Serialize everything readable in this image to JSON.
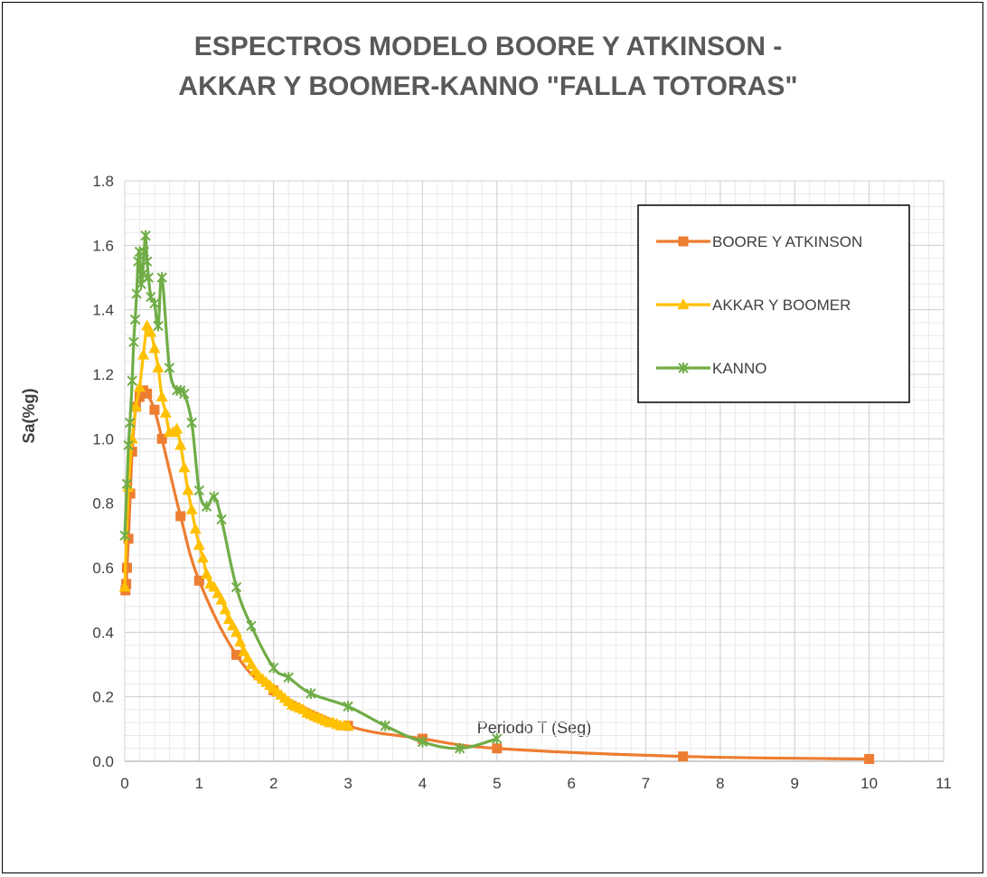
{
  "chart_data": {
    "type": "line",
    "title": "ESPECTROS MODELO BOORE Y ATKINSON - AKKAR Y BOOMER-KANNO \"FALLA TOTORAS\"",
    "xlabel": "Periodo T (Seg)",
    "ylabel": "Sa(%g)",
    "xlim": [
      0,
      11
    ],
    "ylim": [
      0,
      1.8
    ],
    "xticks": [
      "0",
      "1",
      "2",
      "3",
      "4",
      "5",
      "6",
      "7",
      "8",
      "9",
      "10",
      "11"
    ],
    "yticks": [
      "0.0",
      "0.2",
      "0.4",
      "0.6",
      "0.8",
      "1.0",
      "1.2",
      "1.4",
      "1.6",
      "1.8"
    ],
    "grid": true,
    "legend_position": "top-right",
    "series": [
      {
        "name": "BOORE Y ATKINSON",
        "color": "#ED7D31",
        "marker": "square",
        "x": [
          0.01,
          0.02,
          0.03,
          0.05,
          0.075,
          0.1,
          0.15,
          0.2,
          0.25,
          0.3,
          0.4,
          0.5,
          0.75,
          1.0,
          1.5,
          2.0,
          3.0,
          4.0,
          5.0,
          7.5,
          10.0
        ],
        "y": [
          0.53,
          0.55,
          0.6,
          0.69,
          0.83,
          0.96,
          1.1,
          1.13,
          1.15,
          1.14,
          1.09,
          1.0,
          0.76,
          0.56,
          0.33,
          0.22,
          0.11,
          0.07,
          0.04,
          0.015,
          0.007
        ]
      },
      {
        "name": "AKKAR Y BOOMER",
        "color": "#FFC000",
        "marker": "triangle",
        "x": [
          0.0,
          0.05,
          0.1,
          0.15,
          0.2,
          0.25,
          0.3,
          0.35,
          0.4,
          0.45,
          0.5,
          0.55,
          0.6,
          0.65,
          0.7,
          0.75,
          0.8,
          0.85,
          0.9,
          0.95,
          1.0,
          1.05,
          1.1,
          1.15,
          1.2,
          1.25,
          1.3,
          1.35,
          1.4,
          1.45,
          1.5,
          1.55,
          1.6,
          1.65,
          1.7,
          1.75,
          1.8,
          1.85,
          1.9,
          1.95,
          2.0,
          2.05,
          2.1,
          2.15,
          2.2,
          2.25,
          2.3,
          2.35,
          2.4,
          2.45,
          2.5,
          2.55,
          2.6,
          2.65,
          2.7,
          2.75,
          2.8,
          2.85,
          2.9,
          2.95,
          3.0
        ],
        "y": [
          0.54,
          0.85,
          1.0,
          1.1,
          1.16,
          1.26,
          1.35,
          1.33,
          1.28,
          1.22,
          1.13,
          1.08,
          1.02,
          1.02,
          1.03,
          0.98,
          0.91,
          0.84,
          0.78,
          0.72,
          0.67,
          0.63,
          0.58,
          0.55,
          0.54,
          0.52,
          0.5,
          0.47,
          0.44,
          0.42,
          0.4,
          0.37,
          0.34,
          0.32,
          0.3,
          0.28,
          0.265,
          0.255,
          0.245,
          0.235,
          0.225,
          0.215,
          0.205,
          0.195,
          0.185,
          0.175,
          0.17,
          0.165,
          0.16,
          0.15,
          0.145,
          0.14,
          0.135,
          0.13,
          0.125,
          0.12,
          0.12,
          0.115,
          0.11,
          0.11,
          0.11
        ]
      },
      {
        "name": "KANNO",
        "color": "#70AD47",
        "marker": "star",
        "x": [
          0.0,
          0.03,
          0.05,
          0.07,
          0.1,
          0.12,
          0.14,
          0.16,
          0.18,
          0.2,
          0.22,
          0.24,
          0.26,
          0.28,
          0.3,
          0.32,
          0.35,
          0.4,
          0.45,
          0.5,
          0.6,
          0.7,
          0.75,
          0.8,
          0.9,
          1.0,
          1.1,
          1.2,
          1.3,
          1.5,
          1.7,
          2.0,
          2.2,
          2.5,
          3.0,
          3.5,
          4.0,
          4.5,
          5.0
        ],
        "y": [
          0.7,
          0.86,
          0.98,
          1.05,
          1.18,
          1.3,
          1.37,
          1.45,
          1.55,
          1.58,
          1.48,
          1.51,
          1.58,
          1.63,
          1.55,
          1.5,
          1.44,
          1.42,
          1.35,
          1.5,
          1.22,
          1.15,
          1.15,
          1.14,
          1.05,
          0.84,
          0.79,
          0.82,
          0.75,
          0.54,
          0.42,
          0.29,
          0.26,
          0.21,
          0.17,
          0.11,
          0.06,
          0.04,
          0.07
        ]
      }
    ]
  }
}
